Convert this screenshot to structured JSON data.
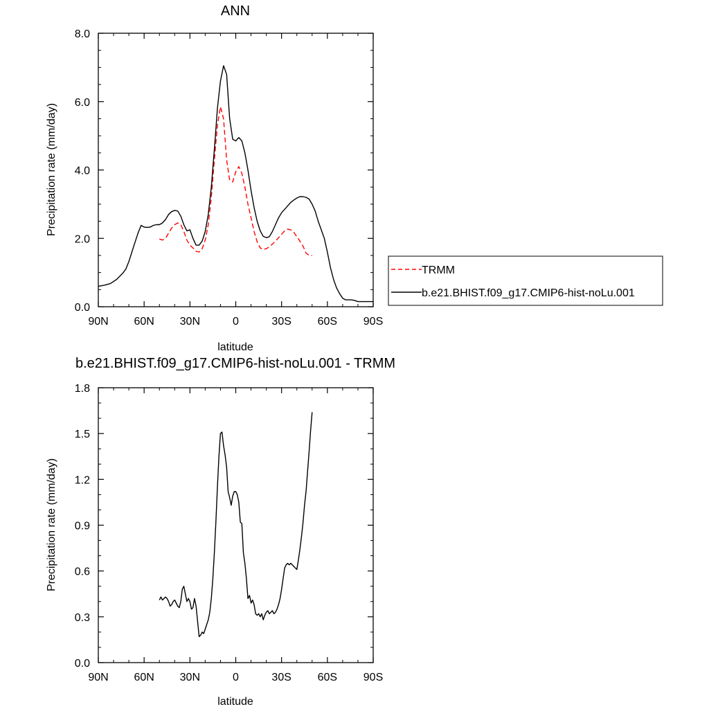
{
  "chart_data": [
    {
      "type": "line",
      "title": "ANN",
      "xlabel": "latitude",
      "ylabel": "Precipitation rate (mm/day)",
      "xlim": [
        90,
        -90
      ],
      "ylim": [
        0,
        8
      ],
      "xticks": [
        90,
        60,
        30,
        0,
        -30,
        -60,
        -90
      ],
      "xtick_labels": [
        "90N",
        "60N",
        "30N",
        "0",
        "30S",
        "60S",
        "90S"
      ],
      "yticks": [
        0,
        2,
        4,
        6,
        8
      ],
      "ytick_labels": [
        "0.0",
        "2.0",
        "4.0",
        "6.0",
        "8.0"
      ],
      "legend_placement": "right",
      "series": [
        {
          "name": "TRMM",
          "color": "#ff0000",
          "dash": "dashed",
          "x": [
            50,
            48,
            46,
            44,
            42,
            40,
            38,
            36,
            34,
            32,
            30,
            28,
            26,
            24,
            22,
            20,
            18,
            16,
            14,
            12,
            10,
            8,
            6,
            4,
            2,
            0,
            -2,
            -4,
            -6,
            -8,
            -10,
            -12,
            -14,
            -16,
            -18,
            -20,
            -22,
            -24,
            -26,
            -28,
            -30,
            -32,
            -34,
            -36,
            -38,
            -40,
            -42,
            -44,
            -46,
            -48,
            -50
          ],
          "y": [
            1.98,
            1.95,
            2.0,
            2.15,
            2.3,
            2.4,
            2.45,
            2.4,
            2.2,
            1.95,
            1.8,
            1.72,
            1.62,
            1.6,
            1.7,
            1.95,
            2.4,
            3.2,
            4.3,
            5.3,
            5.85,
            5.5,
            4.3,
            3.7,
            3.65,
            3.95,
            4.1,
            3.9,
            3.5,
            3.0,
            2.6,
            2.2,
            1.9,
            1.72,
            1.67,
            1.7,
            1.75,
            1.83,
            1.92,
            2.02,
            2.12,
            2.22,
            2.27,
            2.25,
            2.18,
            2.05,
            1.92,
            1.78,
            1.57,
            1.5,
            1.5
          ]
        },
        {
          "name": "b.e21.BHIST.f09_g17.CMIP6-hist-noLu.001",
          "color": "#000000",
          "dash": "solid",
          "x": [
            90,
            86,
            82,
            78,
            74,
            72,
            70,
            68,
            66,
            64,
            62,
            60,
            58,
            56,
            54,
            52,
            50,
            48,
            46,
            44,
            42,
            40,
            38,
            36,
            34,
            32,
            30,
            28,
            26,
            24,
            22,
            20,
            18,
            16,
            14,
            12,
            10,
            8,
            6,
            4,
            2,
            0,
            -2,
            -4,
            -6,
            -8,
            -10,
            -12,
            -14,
            -16,
            -18,
            -20,
            -22,
            -24,
            -26,
            -28,
            -30,
            -32,
            -34,
            -36,
            -38,
            -40,
            -42,
            -44,
            -46,
            -48,
            -50,
            -52,
            -54,
            -56,
            -58,
            -60,
            -62,
            -64,
            -66,
            -68,
            -70,
            -72,
            -74,
            -76,
            -78,
            -80,
            -82,
            -84,
            -86,
            -88,
            -90
          ],
          "y": [
            0.6,
            0.63,
            0.68,
            0.8,
            0.98,
            1.1,
            1.32,
            1.6,
            1.88,
            2.15,
            2.38,
            2.33,
            2.32,
            2.33,
            2.38,
            2.4,
            2.4,
            2.45,
            2.55,
            2.7,
            2.78,
            2.82,
            2.8,
            2.65,
            2.4,
            2.22,
            2.25,
            2.0,
            1.8,
            1.8,
            1.92,
            2.2,
            2.7,
            3.5,
            4.6,
            5.8,
            6.6,
            7.05,
            6.8,
            5.5,
            4.9,
            4.85,
            4.95,
            4.85,
            4.5,
            4.0,
            3.4,
            2.9,
            2.5,
            2.22,
            2.06,
            2.02,
            2.05,
            2.2,
            2.4,
            2.6,
            2.75,
            2.85,
            2.95,
            3.05,
            3.12,
            3.18,
            3.22,
            3.22,
            3.2,
            3.15,
            3.0,
            2.8,
            2.5,
            2.25,
            2.0,
            1.6,
            1.15,
            0.8,
            0.55,
            0.38,
            0.25,
            0.2,
            0.2,
            0.2,
            0.18,
            0.15,
            0.15,
            0.15,
            0.15,
            0.15,
            0.15
          ]
        }
      ]
    },
    {
      "type": "line",
      "title": "b.e21.BHIST.f09_g17.CMIP6-hist-noLu.001 - TRMM",
      "xlabel": "latitude",
      "ylabel": "Precipitation rate (mm/day)",
      "xlim": [
        90,
        -90
      ],
      "ylim": [
        0,
        1.8
      ],
      "xticks": [
        90,
        60,
        30,
        0,
        -30,
        -60,
        -90
      ],
      "xtick_labels": [
        "90N",
        "60N",
        "30N",
        "0",
        "30S",
        "60S",
        "90S"
      ],
      "yticks": [
        0,
        0.3,
        0.6,
        0.9,
        1.2,
        1.5,
        1.8
      ],
      "ytick_labels": [
        "0.0",
        "0.3",
        "0.6",
        "0.9",
        "1.2",
        "1.5",
        "1.8"
      ],
      "series": [
        {
          "color": "#000000",
          "dash": "solid",
          "x": [
            50,
            49,
            48,
            47,
            46,
            45,
            44,
            43,
            42,
            41,
            40,
            39,
            38,
            37,
            36,
            35,
            34,
            33,
            32,
            31,
            30,
            29,
            28,
            27,
            26,
            25,
            24,
            23,
            22,
            21,
            20,
            19,
            18,
            17,
            16,
            15,
            14,
            13,
            12,
            11,
            10,
            9,
            8,
            7,
            6,
            5,
            4,
            3,
            2,
            1,
            0,
            -1,
            -2,
            -3,
            -4,
            -5,
            -6,
            -7,
            -8,
            -9,
            -10,
            -11,
            -12,
            -13,
            -14,
            -15,
            -16,
            -17,
            -18,
            -19,
            -20,
            -21,
            -22,
            -23,
            -24,
            -25,
            -26,
            -27,
            -28,
            -29,
            -30,
            -31,
            -32,
            -33,
            -34,
            -35,
            -36,
            -37,
            -38,
            -39,
            -40,
            -41,
            -42,
            -43,
            -44,
            -45,
            -46,
            -47,
            -48,
            -49,
            -50
          ],
          "y": [
            0.41,
            0.43,
            0.41,
            0.42,
            0.43,
            0.42,
            0.4,
            0.37,
            0.38,
            0.4,
            0.41,
            0.39,
            0.37,
            0.36,
            0.4,
            0.48,
            0.5,
            0.45,
            0.4,
            0.42,
            0.4,
            0.35,
            0.36,
            0.42,
            0.37,
            0.27,
            0.17,
            0.18,
            0.2,
            0.19,
            0.22,
            0.25,
            0.28,
            0.33,
            0.42,
            0.55,
            0.72,
            0.92,
            1.15,
            1.35,
            1.5,
            1.51,
            1.42,
            1.36,
            1.28,
            1.12,
            1.08,
            1.03,
            1.09,
            1.12,
            1.12,
            1.1,
            1.05,
            0.92,
            0.91,
            0.72,
            0.65,
            0.55,
            0.42,
            0.44,
            0.39,
            0.41,
            0.38,
            0.32,
            0.31,
            0.32,
            0.3,
            0.32,
            0.28,
            0.31,
            0.33,
            0.34,
            0.32,
            0.33,
            0.34,
            0.32,
            0.33,
            0.35,
            0.38,
            0.42,
            0.48,
            0.55,
            0.62,
            0.64,
            0.65,
            0.64,
            0.65,
            0.64,
            0.63,
            0.62,
            0.61,
            0.67,
            0.74,
            0.82,
            0.91,
            1.03,
            1.12,
            1.25,
            1.38,
            1.52,
            1.64
          ]
        }
      ]
    }
  ]
}
